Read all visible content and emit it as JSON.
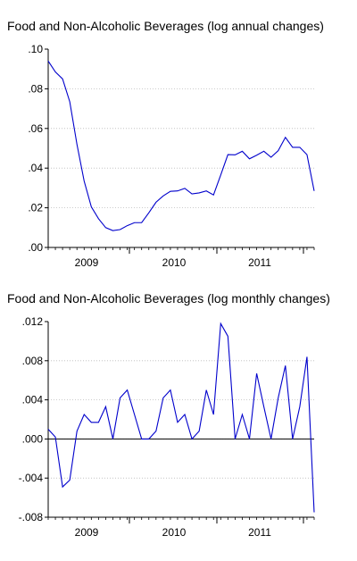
{
  "chart_data": [
    {
      "type": "line",
      "title": "Food and Non-Alcoholic Beverages (log annual changes)",
      "xlabel": "",
      "ylabel": "",
      "x_tick_labels": [
        "2009",
        "2010",
        "2011"
      ],
      "y_tick_labels": [
        ".00",
        ".02",
        ".04",
        ".06",
        ".08",
        ".10"
      ],
      "ylim": [
        0,
        0.1
      ],
      "grid": true,
      "series_color": "#0000cc",
      "grid_color": "#bbbbbb",
      "values": [
        0.094,
        0.0885,
        0.085,
        0.0735,
        0.052,
        0.0335,
        0.0205,
        0.0145,
        0.01,
        0.0085,
        0.009,
        0.011,
        0.0125,
        0.0125,
        0.0175,
        0.0228,
        0.026,
        0.0283,
        0.0285,
        0.0298,
        0.027,
        0.0275,
        0.0285,
        0.0265,
        0.0365,
        0.0468,
        0.0467,
        0.0485,
        0.0447,
        0.0465,
        0.0485,
        0.0455,
        0.0488,
        0.0555,
        0.0505,
        0.0505,
        0.0468,
        0.0285
      ]
    },
    {
      "type": "line",
      "title": "Food and Non-Alcoholic Beverages (log monthly changes)",
      "xlabel": "",
      "ylabel": "",
      "x_tick_labels": [
        "2009",
        "2010",
        "2011"
      ],
      "y_tick_labels": [
        "-.008",
        "-.004",
        ".000",
        ".004",
        ".008",
        ".012"
      ],
      "ylim": [
        -0.008,
        0.012
      ],
      "grid": true,
      "series_color": "#0000cc",
      "grid_color": "#bbbbbb",
      "values": [
        0.001,
        0.0002,
        -0.0049,
        -0.0042,
        0.0008,
        0.0025,
        0.0017,
        0.0017,
        0.0033,
        0.0,
        0.0042,
        0.005,
        0.0025,
        0.0,
        0.0,
        0.0008,
        0.0042,
        0.005,
        0.0017,
        0.0025,
        0.0,
        0.0008,
        0.005,
        0.0025,
        0.0118,
        0.0105,
        0.0,
        0.0025,
        0.0,
        0.0067,
        0.0033,
        0.0,
        0.0042,
        0.0075,
        0.0,
        0.0033,
        0.0084,
        -0.0075
      ]
    }
  ]
}
